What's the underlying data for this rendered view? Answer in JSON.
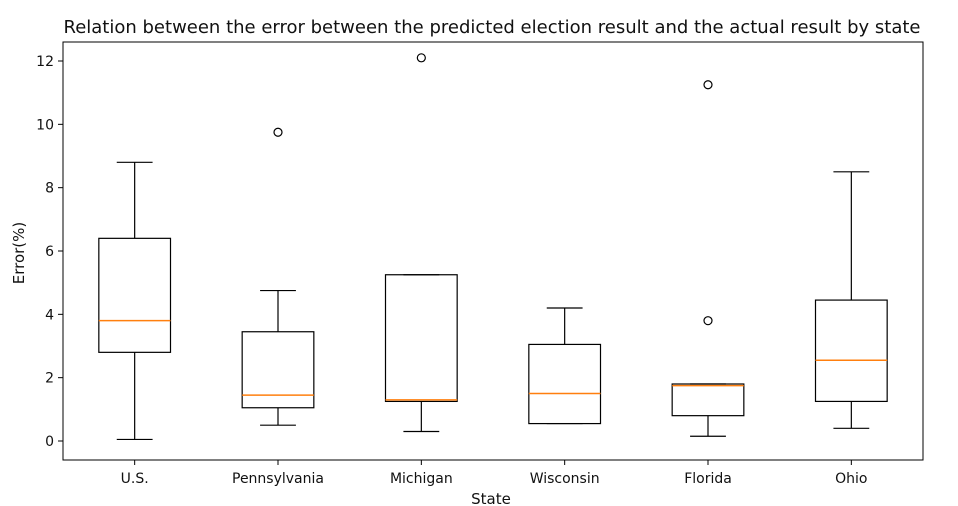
{
  "chart_data": {
    "type": "boxplot",
    "title": "Relation between the error between the predicted election result and the actual result by state",
    "xlabel": "State",
    "ylabel": "Error(%)",
    "categories": [
      "U.S.",
      "Pennsylvania",
      "Michigan",
      "Wisconsin",
      "Florida",
      "Ohio"
    ],
    "ylim": [
      -0.6,
      12.6
    ],
    "yticks": [
      0,
      2,
      4,
      6,
      8,
      10,
      12
    ],
    "grid": false,
    "boxes": [
      {
        "whisker_low": 0.05,
        "q1": 2.8,
        "median": 3.8,
        "q3": 6.4,
        "whisker_high": 8.8,
        "fliers": []
      },
      {
        "whisker_low": 0.5,
        "q1": 1.05,
        "median": 1.45,
        "q3": 3.45,
        "whisker_high": 4.75,
        "fliers": [
          9.75
        ]
      },
      {
        "whisker_low": 0.3,
        "q1": 1.25,
        "median": 1.3,
        "q3": 5.25,
        "whisker_high": 5.25,
        "fliers": [
          12.1
        ]
      },
      {
        "whisker_low": 0.55,
        "q1": 0.55,
        "median": 1.5,
        "q3": 3.05,
        "whisker_high": 4.2,
        "fliers": []
      },
      {
        "whisker_low": 0.15,
        "q1": 0.8,
        "median": 1.75,
        "q3": 1.8,
        "whisker_high": 1.8,
        "fliers": [
          3.8,
          11.25
        ]
      },
      {
        "whisker_low": 0.4,
        "q1": 1.25,
        "median": 2.55,
        "q3": 4.45,
        "whisker_high": 8.5,
        "fliers": []
      }
    ],
    "colors": {
      "box": "#000000",
      "median": "#ff7f0e",
      "flier": "#000000"
    }
  }
}
